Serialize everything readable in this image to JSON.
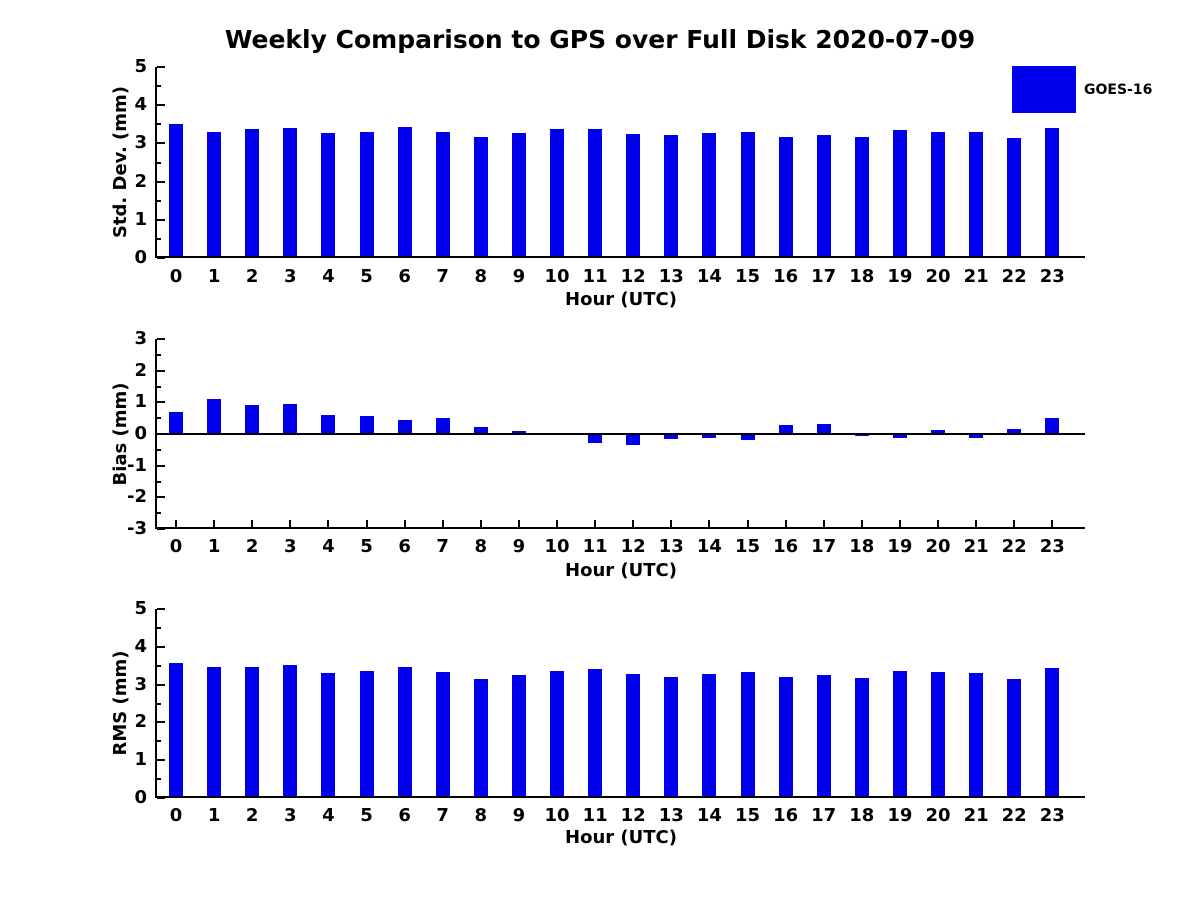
{
  "title": "Weekly Comparison to GPS over Full Disk 2020-07-09",
  "legend": {
    "label": "GOES-16",
    "color": "#0000EE"
  },
  "colors": {
    "bar": "#0000EE",
    "axis": "#000000",
    "text": "#000000",
    "background": "#FFFFFF"
  },
  "chart_data": [
    {
      "type": "bar",
      "name": "std-dev",
      "title": "",
      "ylabel": "Std. Dev. (mm)",
      "xlabel": "Hour (UTC)",
      "ylim": [
        0,
        5
      ],
      "yticks": [
        0,
        1,
        2,
        3,
        4,
        5
      ],
      "minor_ytick_step": 0.5,
      "grid": false,
      "legend_position": "outside-top-right",
      "categories": [
        "0",
        "1",
        "2",
        "3",
        "4",
        "5",
        "6",
        "7",
        "8",
        "9",
        "10",
        "11",
        "12",
        "13",
        "14",
        "15",
        "16",
        "17",
        "18",
        "19",
        "20",
        "21",
        "22",
        "23"
      ],
      "series": [
        {
          "name": "GOES-16",
          "values": [
            3.5,
            3.3,
            3.38,
            3.41,
            3.26,
            3.31,
            3.43,
            3.31,
            3.17,
            3.26,
            3.38,
            3.38,
            3.25,
            3.21,
            3.26,
            3.3,
            3.17,
            3.23,
            3.17,
            3.35,
            3.29,
            3.31,
            3.14,
            3.4
          ]
        }
      ]
    },
    {
      "type": "bar",
      "name": "bias",
      "title": "",
      "ylabel": "Bias (mm)",
      "xlabel": "Hour (UTC)",
      "ylim": [
        -3,
        3
      ],
      "yticks": [
        -3,
        -2,
        -1,
        0,
        1,
        2,
        3
      ],
      "minor_ytick_step": 0.5,
      "grid": false,
      "categories": [
        "0",
        "1",
        "2",
        "3",
        "4",
        "5",
        "6",
        "7",
        "8",
        "9",
        "10",
        "11",
        "12",
        "13",
        "14",
        "15",
        "16",
        "17",
        "18",
        "19",
        "20",
        "21",
        "22",
        "23"
      ],
      "series": [
        {
          "name": "GOES-16",
          "values": [
            0.68,
            1.1,
            0.91,
            0.96,
            0.61,
            0.58,
            0.43,
            0.5,
            0.22,
            0.11,
            0.04,
            -0.27,
            -0.36,
            -0.17,
            -0.14,
            -0.19,
            0.27,
            0.33,
            -0.06,
            -0.12,
            0.13,
            -0.12,
            0.16,
            0.52
          ]
        }
      ]
    },
    {
      "type": "bar",
      "name": "rms",
      "title": "",
      "ylabel": "RMS (mm)",
      "xlabel": "Hour (UTC)",
      "ylim": [
        0,
        5
      ],
      "yticks": [
        0,
        1,
        2,
        3,
        4,
        5
      ],
      "minor_ytick_step": 0.5,
      "grid": false,
      "categories": [
        "0",
        "1",
        "2",
        "3",
        "4",
        "5",
        "6",
        "7",
        "8",
        "9",
        "10",
        "11",
        "12",
        "13",
        "14",
        "15",
        "16",
        "17",
        "18",
        "19",
        "20",
        "21",
        "22",
        "23"
      ],
      "series": [
        {
          "name": "GOES-16",
          "values": [
            3.58,
            3.46,
            3.46,
            3.51,
            3.3,
            3.36,
            3.46,
            3.33,
            3.15,
            3.25,
            3.37,
            3.4,
            3.27,
            3.2,
            3.27,
            3.34,
            3.21,
            3.26,
            3.18,
            3.37,
            3.34,
            3.31,
            3.14,
            3.44
          ]
        }
      ]
    }
  ]
}
